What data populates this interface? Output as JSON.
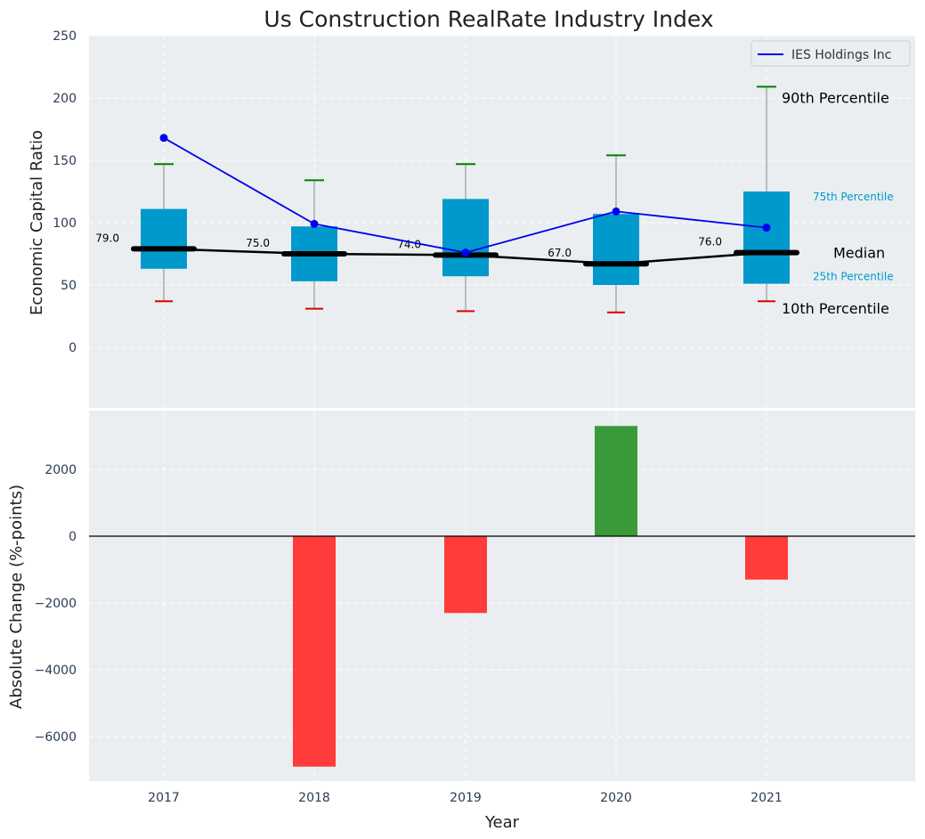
{
  "chart_data": [
    {
      "type": "box",
      "title": "Us Construction RealRate Industry Index",
      "ylabel": "Economic Capital Ratio",
      "ylim": [
        -50,
        250
      ],
      "yticks": [
        0,
        50,
        100,
        150,
        200,
        250
      ],
      "categories": [
        "2017",
        "2018",
        "2019",
        "2020",
        "2021"
      ],
      "boxes": [
        {
          "p10": 37,
          "p25": 63,
          "median": 79,
          "p75": 111,
          "p90": 147
        },
        {
          "p10": 31,
          "p25": 53,
          "median": 75,
          "p75": 97,
          "p90": 134
        },
        {
          "p10": 29,
          "p25": 57,
          "median": 74,
          "p75": 119,
          "p90": 147
        },
        {
          "p10": 28,
          "p25": 50,
          "median": 67,
          "p75": 107,
          "p90": 154
        },
        {
          "p10": 37,
          "p25": 51,
          "median": 76,
          "p75": 125,
          "p90": 209
        }
      ],
      "median_labels": [
        "79.0",
        "75.0",
        "74.0",
        "67.0",
        "76.0"
      ],
      "company_series": {
        "name": "IES Holdings Inc",
        "values": [
          168,
          99,
          76,
          109,
          96
        ]
      },
      "legend": {
        "label": "IES Holdings Inc",
        "placement": "top-right"
      },
      "annotations": {
        "p90": "90th Percentile",
        "p75": "75th Percentile",
        "median": "Median",
        "p25": "25th Percentile",
        "p10": "10th Percentile"
      },
      "colors": {
        "box": "#0099cc",
        "company": "#0000ee",
        "median": "#000000",
        "whisker_top": "#008000",
        "whisker_bottom": "#dd0000",
        "panel_bg": "#eaeef0"
      }
    },
    {
      "type": "bar",
      "ylabel": "Absolute Change (%-points)",
      "xlabel": "Year",
      "ylim": [
        -7350,
        4000
      ],
      "yticks": [
        -6000,
        -4000,
        -2000,
        0,
        2000
      ],
      "ytick_labels": [
        "−6000",
        "−4000",
        "−2000",
        "0",
        "2000"
      ],
      "categories": [
        "2017",
        "2018",
        "2019",
        "2020",
        "2021"
      ],
      "values": [
        0,
        -6900,
        -2300,
        3300,
        -1300
      ],
      "colors": {
        "negative": "#ff3b3b",
        "positive": "#3a9a3a"
      }
    }
  ]
}
